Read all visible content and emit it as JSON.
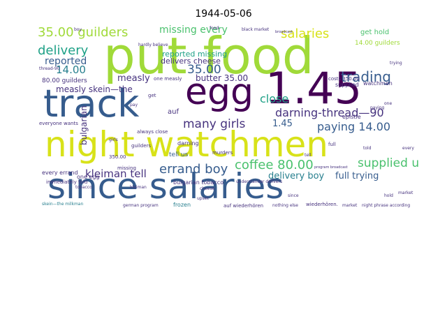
{
  "title": "1944-05-06",
  "colors": {
    "yellow": "#d8e219",
    "lime": "#a0da39",
    "green": "#4ac16d",
    "teal": "#1fa187",
    "cyan": "#277f8e",
    "blue": "#365c8d",
    "indigo": "#46327e",
    "dark": "#440154"
  },
  "words": {
    "put_food": "put food",
    "since_salaries": "since salaries",
    "night_watchmen": "night watchmen",
    "track": "track",
    "egg": "egg",
    "num_145_big": "1.45",
    "guilders_35": "35.00 guilders",
    "salaries": "salaries",
    "delivery": "delivery",
    "missing_every": "missing every",
    "reported": "reported",
    "num_14": "14.00",
    "reported_missing": "reported missing",
    "delivers_cheese": "delivers cheese",
    "num_35": "35.00",
    "measly": "measly",
    "butter_35": "butter 35.00",
    "measly_skein": "measly skein—the",
    "trading": "trading",
    "close": "close",
    "darning_thread": "darning-thread—90",
    "many_girls": "many girls",
    "num_145": "1.45",
    "paying_14": "paying 14.00",
    "bulgarian": "bulgarian",
    "coffee_80": "coffee 80.00",
    "supplied_us_big": "supplied us",
    "kleiman_tell": "kleiman tell",
    "errand_boy": "errand boy",
    "delivery_boy": "delivery boy",
    "full_trying": "full trying",
    "guilders_80": "80.00 guilders",
    "get_hold": "get hold",
    "guilders_14": "14.00 guilders",
    "one_measly": "one measly",
    "watchmen": "watchmen",
    "supplied": "supplied",
    "costs_350": "costs 350.00",
    "epistle": "epistle",
    "darning": "darning",
    "tell_us": "tell us",
    "always_close": "always close",
    "bulgarian_tobacco": "bulgarian tobacco",
    "every_errand": "every errand",
    "one_egg": "one egg",
    "immediately_told": "immediately told",
    "frozen": "frozen",
    "aus_wiederhoren": "auf wiederhören",
    "upset": "upset",
    "understander": "understander delivers",
    "murders": "murders",
    "hardly_believe": "hardly believe",
    "german_program": "german program",
    "black_market": "black market",
    "skein_milkman": "skein—the milkman",
    "nothing_else": "nothing else",
    "wiederhoren": "wiederhören.",
    "market": "market",
    "night_phrase": "night phrase according",
    "program_broadcast": "program broadcast",
    "broadcast": "broadcast",
    "everyone_wants": "everyone wants",
    "thread_90": "thread-90",
    "num_350": "350.00",
    "missing": "missing",
    "aus": "auf",
    "get": "get",
    "boy": "boy",
    "one": "one",
    "full": "full",
    "guilders": "guilders",
    "told": "told",
    "food": "food",
    "pay": "pay",
    "tell": "tell",
    "sinds": "since",
    "hold": "hold",
    "cheese": "cheese",
    "kleiman": "kleiman",
    "trying": "trying",
    "paying": "paying",
    "tobacco": "tobacco",
    "upset_small": "upset",
    "every": "every",
    "girls": "girls",
    "market_small": "market"
  }
}
